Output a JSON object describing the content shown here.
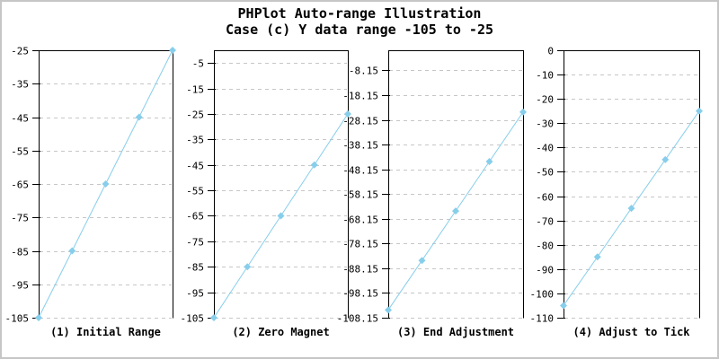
{
  "title": {
    "line1": "PHPlot Auto-range Illustration",
    "line2": "Case (c) Y data range -105 to -25"
  },
  "style": {
    "data_color": "#87CEEB",
    "grid_color": "#c6c6c6",
    "frame_color": "#000000",
    "text_color": "#000000",
    "background": "#ffffff",
    "image_border_color": "#c6c6c6"
  },
  "chart_data": [
    {
      "type": "line",
      "title": "(1) Initial Range",
      "x": [
        0,
        1,
        2,
        3,
        4
      ],
      "values": [
        -105,
        -85,
        -65,
        -45,
        -25
      ],
      "ylim": [
        -105,
        -25
      ],
      "yticks": [
        -25,
        -35,
        -45,
        -55,
        -65,
        -75,
        -85,
        -95,
        -105
      ],
      "ytick_labels": [
        "-25",
        "-35",
        "-45",
        "-55",
        "-65",
        "-75",
        "-85",
        "-95",
        "-105"
      ],
      "grid": true,
      "marker": "diamond",
      "legend_position": "none"
    },
    {
      "type": "line",
      "title": "(2) Zero Magnet",
      "x": [
        0,
        1,
        2,
        3,
        4
      ],
      "values": [
        -105,
        -85,
        -65,
        -45,
        -25
      ],
      "ylim": [
        -105,
        0
      ],
      "yticks": [
        -5,
        -15,
        -25,
        -35,
        -45,
        -55,
        -65,
        -75,
        -85,
        -95,
        -105
      ],
      "ytick_labels": [
        "-5",
        "-15",
        "-25",
        "-35",
        "-45",
        "-55",
        "-65",
        "-75",
        "-85",
        "-95",
        "-105"
      ],
      "grid": true,
      "marker": "diamond",
      "legend_position": "none"
    },
    {
      "type": "line",
      "title": "(3) End Adjustment",
      "x": [
        0,
        1,
        2,
        3,
        4
      ],
      "values": [
        -105,
        -85,
        -65,
        -45,
        -25
      ],
      "ylim": [
        -108.15,
        0
      ],
      "yticks": [
        -8.15,
        -18.15,
        -28.15,
        -38.15,
        -48.15,
        -58.15,
        -68.15,
        -78.15,
        -88.15,
        -98.15,
        -108.15
      ],
      "ytick_labels": [
        "-8.15",
        "-18.15",
        "-28.15",
        "-38.15",
        "-48.15",
        "-58.15",
        "-68.15",
        "-78.15",
        "-88.15",
        "-98.15",
        "-108.15"
      ],
      "grid": true,
      "marker": "diamond",
      "legend_position": "none"
    },
    {
      "type": "line",
      "title": "(4) Adjust to Tick",
      "x": [
        0,
        1,
        2,
        3,
        4
      ],
      "values": [
        -105,
        -85,
        -65,
        -45,
        -25
      ],
      "ylim": [
        -110,
        0
      ],
      "yticks": [
        0,
        -10,
        -20,
        -30,
        -40,
        -50,
        -60,
        -70,
        -80,
        -90,
        -100,
        -110
      ],
      "ytick_labels": [
        "0",
        "-10",
        "-20",
        "-30",
        "-40",
        "-50",
        "-60",
        "-70",
        "-80",
        "-90",
        "-100",
        "-110"
      ],
      "grid": true,
      "marker": "diamond",
      "legend_position": "none"
    }
  ]
}
